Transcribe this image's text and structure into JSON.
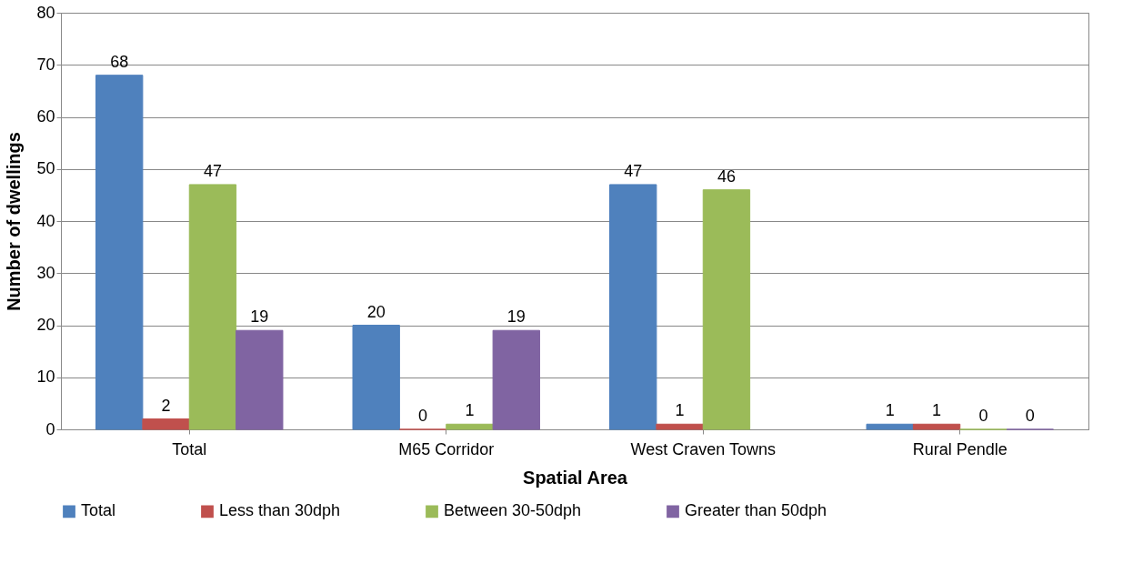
{
  "chart_data": {
    "type": "bar",
    "xlabel": "Spatial Area",
    "ylabel": "Number of dwellings",
    "categories": [
      "Total",
      "M65 Corridor",
      "West Craven Towns",
      "Rural Pendle"
    ],
    "series": [
      {
        "name": "Total",
        "color": "#4f81bd",
        "values": [
          68,
          20,
          47,
          1
        ]
      },
      {
        "name": "Less than 30dph",
        "color": "#c0504d",
        "values": [
          2,
          0,
          1,
          1
        ]
      },
      {
        "name": "Between 30-50dph",
        "color": "#9bbb59",
        "values": [
          47,
          1,
          46,
          0
        ]
      },
      {
        "name": "Greater than 50dph",
        "color": "#8064a2",
        "values": [
          19,
          19,
          null,
          0
        ]
      }
    ],
    "ylim": [
      0,
      80
    ],
    "yticks": [
      0,
      10,
      20,
      30,
      40,
      50,
      60,
      70,
      80
    ],
    "grid": "y",
    "legend": "bottom",
    "data_labels": true
  }
}
